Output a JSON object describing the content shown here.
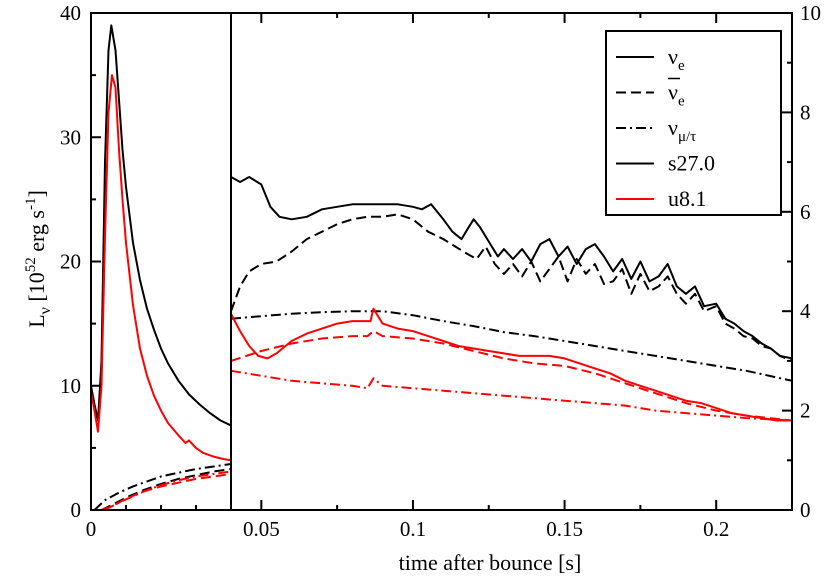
{
  "chart_data": {
    "type": "line",
    "xlabel": "time after bounce [s]",
    "ylabel_left": {
      "main": "L",
      "sub": "ν",
      "unit_open": " [10",
      "exp52": "52",
      "unit_mid": " erg s",
      "expm1": "-1",
      "unit_close": "]"
    },
    "legend": {
      "placement": "top-right",
      "entries": [
        {
          "label": "ν",
          "sub": "e",
          "bar": false,
          "style": "solid",
          "color": "#000000"
        },
        {
          "label": "ν",
          "sub": "e",
          "bar": true,
          "style": "dashed",
          "color": "#000000"
        },
        {
          "label": "ν",
          "sub": "μ/τ",
          "bar": false,
          "style": "dashdot",
          "color": "#000000"
        },
        {
          "label": "s27.0",
          "style": "solid",
          "color": "#000000"
        },
        {
          "label": "u8.1",
          "style": "solid",
          "color": "#ff0000"
        }
      ]
    },
    "panels": [
      {
        "name": "left",
        "xlim": [
          0,
          0.04
        ],
        "ylim": [
          0,
          40
        ],
        "xticks": [
          {
            "v": 0,
            "label": "0"
          }
        ],
        "yticks": [
          {
            "v": 0,
            "label": "0"
          },
          {
            "v": 10,
            "label": "10"
          },
          {
            "v": 20,
            "label": "20"
          },
          {
            "v": 30,
            "label": "30"
          },
          {
            "v": 40,
            "label": "40"
          }
        ],
        "series": [
          {
            "model": "s27.0",
            "flavor": "nu_e",
            "style": "solid",
            "color": "#000000",
            "x": [
              0,
              0.001,
              0.002,
              0.003,
              0.004,
              0.005,
              0.0058,
              0.007,
              0.008,
              0.009,
              0.01,
              0.012,
              0.014,
              0.016,
              0.018,
              0.02,
              0.022,
              0.025,
              0.028,
              0.031,
              0.034,
              0.037,
              0.04
            ],
            "y": [
              10,
              8.5,
              7.2,
              12,
              28,
              37,
              39,
              37,
              33,
              29,
              26,
              21.5,
              18.5,
              16.2,
              14.5,
              13,
              11.8,
              10.4,
              9.3,
              8.5,
              7.8,
              7.2,
              6.8
            ]
          },
          {
            "model": "u8.1",
            "flavor": "nu_e",
            "style": "solid",
            "color": "#ff0000",
            "x": [
              0,
              0.001,
              0.002,
              0.003,
              0.004,
              0.005,
              0.006,
              0.007,
              0.008,
              0.009,
              0.01,
              0.012,
              0.014,
              0.016,
              0.018,
              0.02,
              0.022,
              0.025,
              0.027,
              0.028,
              0.03,
              0.032,
              0.035,
              0.038,
              0.04
            ],
            "y": [
              9.5,
              8,
              6.3,
              10,
              22,
              32,
              35,
              34,
              29,
              25,
              21.5,
              16.5,
              13,
              10.8,
              9.2,
              8,
              7,
              6,
              5.4,
              5.6,
              5,
              4.6,
              4.3,
              4.1,
              4
            ]
          },
          {
            "model": "s27.0",
            "flavor": "nu_e_bar",
            "style": "dashed",
            "color": "#000000",
            "x": [
              0.003,
              0.006,
              0.01,
              0.015,
              0.02,
              0.025,
              0.03,
              0.035,
              0.04
            ],
            "y": [
              0,
              0.4,
              1,
              1.6,
              2.1,
              2.5,
              2.8,
              3.1,
              3.3
            ]
          },
          {
            "model": "s27.0",
            "flavor": "nu_mu_tau",
            "style": "dashdot",
            "color": "#000000",
            "x": [
              0.001,
              0.004,
              0.008,
              0.012,
              0.016,
              0.02,
              0.025,
              0.03,
              0.035,
              0.04
            ],
            "y": [
              0,
              0.8,
              1.4,
              1.9,
              2.3,
              2.7,
              3,
              3.3,
              3.5,
              3.7
            ]
          },
          {
            "model": "u8.1",
            "flavor": "nu_e_bar",
            "style": "dashed",
            "color": "#ff0000",
            "x": [
              0.003,
              0.006,
              0.01,
              0.015,
              0.02,
              0.025,
              0.03,
              0.035,
              0.04
            ],
            "y": [
              0,
              0.3,
              0.9,
              1.5,
              1.9,
              2.2,
              2.5,
              2.7,
              2.9
            ]
          },
          {
            "model": "u8.1",
            "flavor": "nu_mu_tau",
            "style": "dashdot",
            "color": "#ff0000",
            "x": [
              0.004,
              0.008,
              0.012,
              0.016,
              0.02,
              0.025,
              0.03,
              0.035,
              0.04
            ],
            "y": [
              0,
              0.6,
              1.1,
              1.6,
              2,
              2.4,
              2.7,
              2.9,
              3.1
            ]
          }
        ]
      },
      {
        "name": "right",
        "xlim": [
          0.04,
          0.225
        ],
        "ylim": [
          0,
          10
        ],
        "xticks": [
          {
            "v": 0.05,
            "label": "0.05"
          },
          {
            "v": 0.1,
            "label": "0.1"
          },
          {
            "v": 0.15,
            "label": "0.15"
          },
          {
            "v": 0.2,
            "label": "0.2"
          }
        ],
        "yticks": [
          {
            "v": 0,
            "label": "0"
          },
          {
            "v": 2,
            "label": "2"
          },
          {
            "v": 4,
            "label": "4"
          },
          {
            "v": 6,
            "label": "6"
          },
          {
            "v": 8,
            "label": "8"
          },
          {
            "v": 10,
            "label": "10"
          }
        ],
        "series": [
          {
            "model": "s27.0",
            "flavor": "nu_e",
            "style": "solid",
            "color": "#000000",
            "x": [
              0.04,
              0.043,
              0.046,
              0.05,
              0.053,
              0.056,
              0.06,
              0.065,
              0.07,
              0.075,
              0.08,
              0.085,
              0.09,
              0.095,
              0.1,
              0.103,
              0.106,
              0.11,
              0.113,
              0.116,
              0.118,
              0.12,
              0.122,
              0.125,
              0.128,
              0.13,
              0.133,
              0.136,
              0.139,
              0.142,
              0.145,
              0.148,
              0.151,
              0.154,
              0.157,
              0.16,
              0.163,
              0.166,
              0.169,
              0.172,
              0.175,
              0.178,
              0.181,
              0.184,
              0.187,
              0.19,
              0.193,
              0.196,
              0.2,
              0.203,
              0.206,
              0.209,
              0.212,
              0.215,
              0.218,
              0.221,
              0.225
            ],
            "y": [
              6.7,
              6.6,
              6.7,
              6.55,
              6.1,
              5.9,
              5.85,
              5.9,
              6.05,
              6.1,
              6.15,
              6.15,
              6.15,
              6.15,
              6.1,
              6.05,
              6.15,
              5.85,
              5.6,
              5.45,
              5.65,
              5.85,
              5.7,
              5.4,
              5.1,
              5.25,
              5.05,
              5.25,
              5.0,
              5.35,
              5.45,
              5.1,
              5.3,
              4.95,
              5.25,
              5.35,
              5.1,
              4.8,
              5.05,
              4.65,
              5.0,
              4.6,
              4.7,
              4.95,
              4.5,
              4.35,
              4.5,
              4.1,
              4.15,
              3.85,
              3.75,
              3.6,
              3.5,
              3.35,
              3.25,
              3.1,
              3.05
            ]
          },
          {
            "model": "s27.0",
            "flavor": "nu_e_bar",
            "style": "dashed",
            "color": "#000000",
            "x": [
              0.04,
              0.043,
              0.046,
              0.05,
              0.055,
              0.06,
              0.065,
              0.07,
              0.075,
              0.08,
              0.085,
              0.09,
              0.095,
              0.1,
              0.105,
              0.11,
              0.114,
              0.118,
              0.121,
              0.124,
              0.127,
              0.13,
              0.133,
              0.136,
              0.139,
              0.142,
              0.145,
              0.148,
              0.151,
              0.154,
              0.157,
              0.16,
              0.163,
              0.166,
              0.169,
              0.172,
              0.175,
              0.178,
              0.181,
              0.184,
              0.187,
              0.19,
              0.193,
              0.196,
              0.2,
              0.203,
              0.206,
              0.209,
              0.212,
              0.215,
              0.218,
              0.221,
              0.225
            ],
            "y": [
              4.0,
              4.5,
              4.8,
              4.95,
              5.0,
              5.2,
              5.45,
              5.6,
              5.75,
              5.85,
              5.9,
              5.9,
              5.95,
              5.85,
              5.6,
              5.45,
              5.3,
              5.15,
              5.05,
              5.3,
              4.95,
              4.75,
              4.95,
              4.7,
              5.0,
              4.6,
              4.85,
              5.1,
              4.6,
              5.05,
              4.75,
              4.95,
              4.55,
              4.6,
              4.85,
              4.35,
              4.75,
              4.4,
              4.5,
              4.7,
              4.35,
              4.15,
              4.35,
              4.0,
              4.1,
              3.75,
              3.65,
              3.5,
              3.45,
              3.3,
              3.25,
              3.1,
              3.0
            ]
          },
          {
            "model": "s27.0",
            "flavor": "nu_mu_tau",
            "style": "dashdot",
            "color": "#000000",
            "x": [
              0.04,
              0.05,
              0.06,
              0.07,
              0.08,
              0.09,
              0.1,
              0.11,
              0.12,
              0.13,
              0.14,
              0.15,
              0.16,
              0.17,
              0.18,
              0.19,
              0.2,
              0.21,
              0.225
            ],
            "y": [
              3.85,
              3.9,
              3.95,
              3.98,
              4.0,
              4.0,
              3.92,
              3.8,
              3.7,
              3.58,
              3.5,
              3.4,
              3.3,
              3.2,
              3.1,
              3.0,
              2.9,
              2.8,
              2.6
            ]
          },
          {
            "model": "u8.1",
            "flavor": "nu_e",
            "style": "solid",
            "color": "#ff0000",
            "x": [
              0.04,
              0.043,
              0.046,
              0.049,
              0.052,
              0.055,
              0.06,
              0.065,
              0.07,
              0.075,
              0.08,
              0.085,
              0.086,
              0.087,
              0.09,
              0.095,
              0.1,
              0.105,
              0.11,
              0.115,
              0.12,
              0.125,
              0.13,
              0.135,
              0.14,
              0.145,
              0.15,
              0.155,
              0.16,
              0.165,
              0.17,
              0.175,
              0.18,
              0.185,
              0.19,
              0.195,
              0.2,
              0.205,
              0.21,
              0.215,
              0.22,
              0.225
            ],
            "y": [
              3.95,
              3.6,
              3.3,
              3.1,
              3.05,
              3.15,
              3.4,
              3.55,
              3.65,
              3.75,
              3.8,
              3.8,
              3.8,
              4.05,
              3.75,
              3.65,
              3.6,
              3.5,
              3.4,
              3.3,
              3.25,
              3.2,
              3.15,
              3.1,
              3.1,
              3.1,
              3.05,
              2.95,
              2.85,
              2.75,
              2.6,
              2.5,
              2.4,
              2.3,
              2.2,
              2.15,
              2.05,
              1.95,
              1.9,
              1.85,
              1.8,
              1.8
            ]
          },
          {
            "model": "u8.1",
            "flavor": "nu_e_bar",
            "style": "dashed",
            "color": "#ff0000",
            "x": [
              0.04,
              0.05,
              0.06,
              0.07,
              0.08,
              0.085,
              0.087,
              0.09,
              0.1,
              0.11,
              0.12,
              0.13,
              0.14,
              0.15,
              0.16,
              0.17,
              0.18,
              0.19,
              0.2,
              0.21,
              0.225
            ],
            "y": [
              3.0,
              3.2,
              3.35,
              3.45,
              3.5,
              3.5,
              3.6,
              3.5,
              3.45,
              3.35,
              3.2,
              3.05,
              2.95,
              2.9,
              2.75,
              2.55,
              2.35,
              2.15,
              2.0,
              1.9,
              1.8
            ]
          },
          {
            "model": "u8.1",
            "flavor": "nu_mu_tau",
            "style": "dashdot",
            "color": "#ff0000",
            "x": [
              0.04,
              0.05,
              0.06,
              0.07,
              0.08,
              0.085,
              0.087,
              0.09,
              0.1,
              0.11,
              0.12,
              0.13,
              0.14,
              0.15,
              0.16,
              0.17,
              0.18,
              0.19,
              0.2,
              0.21,
              0.225
            ],
            "y": [
              2.8,
              2.7,
              2.6,
              2.55,
              2.5,
              2.45,
              2.65,
              2.5,
              2.45,
              2.4,
              2.35,
              2.3,
              2.25,
              2.2,
              2.15,
              2.1,
              2.0,
              1.95,
              1.9,
              1.85,
              1.8
            ]
          }
        ]
      }
    ]
  }
}
